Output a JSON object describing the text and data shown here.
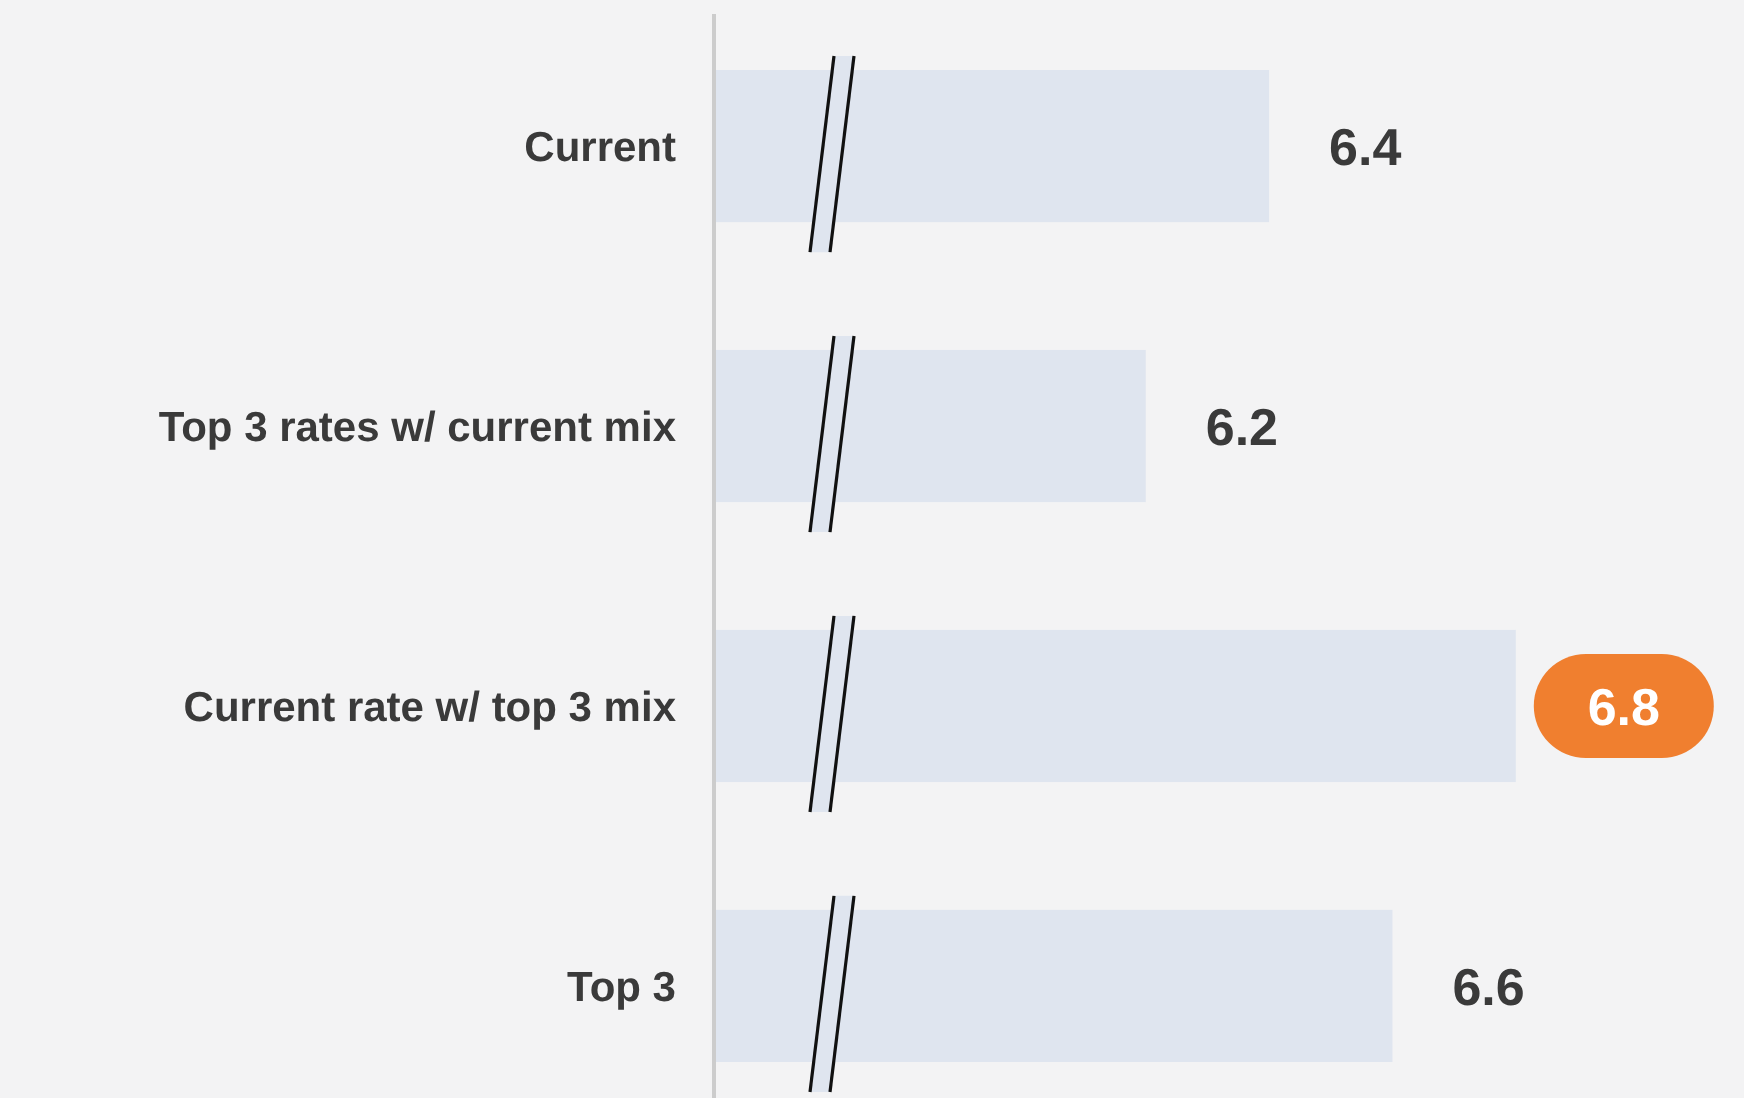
{
  "chart_data": {
    "type": "bar",
    "orientation": "horizontal",
    "categories": [
      "Current",
      "Top 3 rates w/ current mix",
      "Current rate w/ top 3 mix",
      "Top 3"
    ],
    "values": [
      6.4,
      6.2,
      6.8,
      6.6
    ],
    "color": "#dfe5ef",
    "xlim": [
      5.5,
      7.17
    ],
    "data_labels": true,
    "tick_labels": "y"
  }
}
